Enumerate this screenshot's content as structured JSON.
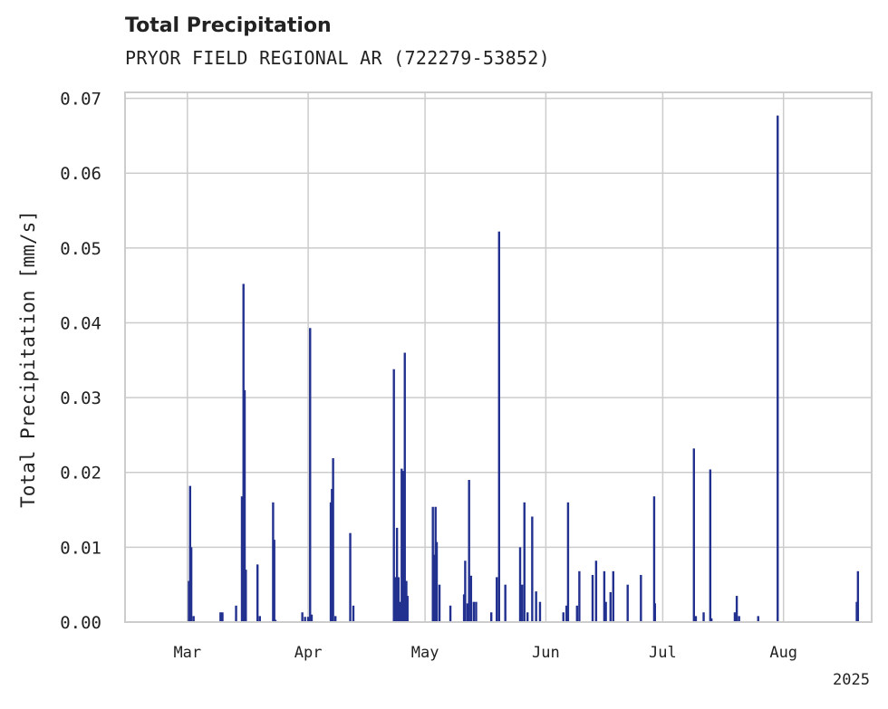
{
  "chart_data": {
    "type": "bar",
    "title": "Total Precipitation",
    "subtitle": "PRYOR FIELD REGIONAL AR (722279-53852)",
    "xlabel": "",
    "ylabel": "Total Precipitation [mm/s]",
    "ylim": [
      0,
      0.0708
    ],
    "yticks": [
      "0.00",
      "0.01",
      "0.02",
      "0.03",
      "0.04",
      "0.05",
      "0.06",
      "0.07"
    ],
    "xlim_days": [
      0,
      191.8
    ],
    "xticks": [
      {
        "label": "Mar",
        "day": 16
      },
      {
        "label": "Apr",
        "day": 47
      },
      {
        "label": "May",
        "day": 77
      },
      {
        "label": "Jun",
        "day": 108
      },
      {
        "label": "Jul",
        "day": 138
      },
      {
        "label": "Aug",
        "day": 169
      }
    ],
    "year_label": "2025",
    "x_unit": "days since 2025-02-13",
    "grid": true,
    "bar_color": "#22318f",
    "values": [
      [
        16.4,
        0.0055
      ],
      [
        16.7,
        0.0182
      ],
      [
        17.0,
        0.01
      ],
      [
        17.6,
        0.0008
      ],
      [
        24.5,
        0.0013
      ],
      [
        25.0,
        0.0013
      ],
      [
        28.5,
        0.0022
      ],
      [
        30.0,
        0.0168
      ],
      [
        30.4,
        0.0452
      ],
      [
        30.7,
        0.031
      ],
      [
        31.0,
        0.007
      ],
      [
        34.0,
        0.0077
      ],
      [
        34.6,
        0.0008
      ],
      [
        38.0,
        0.016
      ],
      [
        38.3,
        0.011
      ],
      [
        38.6,
        0.0003
      ],
      [
        45.5,
        0.0013
      ],
      [
        46.2,
        0.0007
      ],
      [
        47.0,
        0.0007
      ],
      [
        47.5,
        0.0393
      ],
      [
        47.9,
        0.001
      ],
      [
        52.8,
        0.016
      ],
      [
        53.1,
        0.0178
      ],
      [
        53.4,
        0.0219
      ],
      [
        54.0,
        0.0008
      ],
      [
        57.8,
        0.0119
      ],
      [
        58.6,
        0.0022
      ],
      [
        69.0,
        0.0338
      ],
      [
        69.4,
        0.006
      ],
      [
        69.8,
        0.0126
      ],
      [
        70.2,
        0.006
      ],
      [
        70.6,
        0.0027
      ],
      [
        71.0,
        0.0205
      ],
      [
        71.4,
        0.0202
      ],
      [
        71.8,
        0.036
      ],
      [
        72.2,
        0.0055
      ],
      [
        72.5,
        0.0035
      ],
      [
        79.0,
        0.0154
      ],
      [
        79.3,
        0.009
      ],
      [
        79.7,
        0.0154
      ],
      [
        80.0,
        0.0107
      ],
      [
        80.7,
        0.005
      ],
      [
        83.5,
        0.0022
      ],
      [
        87.0,
        0.0037
      ],
      [
        87.3,
        0.0082
      ],
      [
        87.9,
        0.0025
      ],
      [
        88.3,
        0.019
      ],
      [
        88.8,
        0.0062
      ],
      [
        89.5,
        0.0027
      ],
      [
        90.1,
        0.0027
      ],
      [
        94.0,
        0.0013
      ],
      [
        95.4,
        0.006
      ],
      [
        96.0,
        0.0522
      ],
      [
        97.6,
        0.005
      ],
      [
        101.4,
        0.01
      ],
      [
        101.9,
        0.005
      ],
      [
        102.5,
        0.016
      ],
      [
        103.3,
        0.0013
      ],
      [
        104.5,
        0.0141
      ],
      [
        105.5,
        0.0041
      ],
      [
        106.5,
        0.0027
      ],
      [
        112.5,
        0.0013
      ],
      [
        113.3,
        0.0022
      ],
      [
        113.7,
        0.016
      ],
      [
        116.0,
        0.0022
      ],
      [
        116.6,
        0.0068
      ],
      [
        120.0,
        0.0063
      ],
      [
        120.9,
        0.0082
      ],
      [
        123.0,
        0.0068
      ],
      [
        123.4,
        0.0027
      ],
      [
        124.6,
        0.004
      ],
      [
        125.3,
        0.0068
      ],
      [
        129.0,
        0.005
      ],
      [
        132.4,
        0.0063
      ],
      [
        135.8,
        0.0168
      ],
      [
        136.0,
        0.0025
      ],
      [
        146.0,
        0.0232
      ],
      [
        146.5,
        0.0008
      ],
      [
        148.5,
        0.0013
      ],
      [
        150.2,
        0.0204
      ],
      [
        150.5,
        0.0005
      ],
      [
        156.5,
        0.0013
      ],
      [
        157.0,
        0.0035
      ],
      [
        157.6,
        0.0008
      ],
      [
        162.5,
        0.0008
      ],
      [
        167.5,
        0.0677
      ],
      [
        187.8,
        0.0027
      ],
      [
        188.1,
        0.0068
      ]
    ]
  }
}
